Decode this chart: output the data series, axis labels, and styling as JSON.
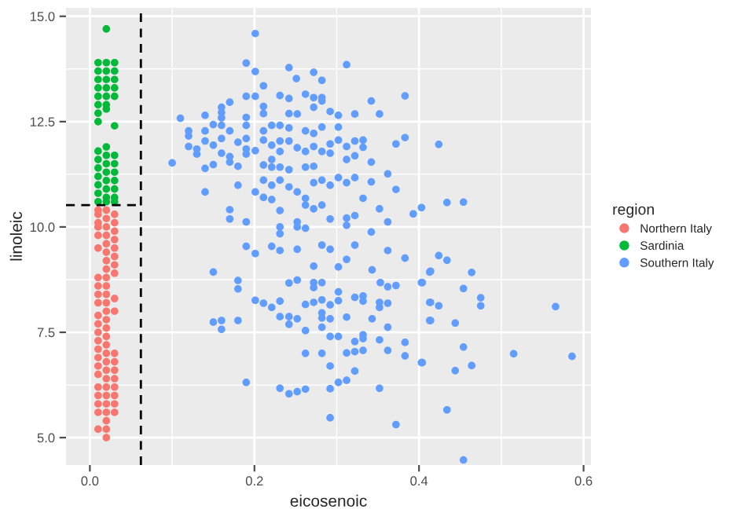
{
  "chart_data": {
    "type": "scatter",
    "xlabel": "eicosenoic",
    "ylabel": "linoleic",
    "legend_title": "region",
    "legend": "right",
    "grid": true,
    "marker": "circle",
    "xlim": [
      -0.029,
      0.609
    ],
    "ylim": [
      4.35,
      15.2
    ],
    "xticks": [
      {
        "value": 0,
        "label": "0.0"
      },
      0.2,
      0.4,
      0.6
    ],
    "yticks": [
      {
        "value": 5,
        "label": "5.0"
      },
      7.5,
      {
        "value": 10,
        "label": "10.0"
      },
      12.5,
      {
        "value": 15,
        "label": "15.0"
      }
    ],
    "ref_lines": [
      {
        "axis": "x",
        "value": 0.062,
        "line_style": "dashed",
        "color": "#000000"
      },
      {
        "axis": "y",
        "value": 10.52,
        "line_style": "dashed",
        "color": "#000000"
      }
    ],
    "series": [
      {
        "name": "Northern Italy",
        "color": "#f8766d",
        "x": [
          0.01,
          0.01,
          0.01,
          0.01,
          0.01,
          0.01,
          0.01,
          0.01,
          0.01,
          0.01,
          0.01,
          0.01,
          0.01,
          0.01,
          0.01,
          0.01,
          0.01,
          0.01,
          0.01,
          0.01,
          0.01,
          0.01,
          0.01,
          0.02,
          0.02,
          0.02,
          0.02,
          0.02,
          0.02,
          0.02,
          0.02,
          0.02,
          0.02,
          0.02,
          0.02,
          0.02,
          0.02,
          0.02,
          0.02,
          0.02,
          0.02,
          0.02,
          0.02,
          0.02,
          0.02,
          0.02,
          0.02,
          0.02,
          0.02,
          0.02,
          0.02,
          0.03,
          0.03,
          0.03,
          0.03,
          0.03,
          0.03,
          0.03,
          0.03,
          0.03,
          0.03,
          0.03,
          0.03,
          0.03,
          0.03,
          0.03,
          0.03,
          0.03,
          0.03
        ],
        "values": [
          10.4,
          10.3,
          10.1,
          10.0,
          9.8,
          9.5,
          8.8,
          8.6,
          8.4,
          8.2,
          7.9,
          7.7,
          7.5,
          7.3,
          7.1,
          6.9,
          6.7,
          6.5,
          6.2,
          6.0,
          5.8,
          5.6,
          5.2,
          10.4,
          10.2,
          10.0,
          9.8,
          9.6,
          9.4,
          9.2,
          9.0,
          8.8,
          8.6,
          8.4,
          8.2,
          8.0,
          7.8,
          7.6,
          7.4,
          7.2,
          7.0,
          6.8,
          6.6,
          6.4,
          6.2,
          6.0,
          5.8,
          5.6,
          5.4,
          5.2,
          5.0,
          10.3,
          10.1,
          9.9,
          9.7,
          9.5,
          9.3,
          9.1,
          8.9,
          8.3,
          8.0,
          7.0,
          6.8,
          6.6,
          6.4,
          6.2,
          6.0,
          5.8,
          5.6
        ]
      },
      {
        "name": "Sardinia",
        "color": "#00ba38",
        "x": [
          0.02,
          0.01,
          0.01,
          0.01,
          0.01,
          0.01,
          0.01,
          0.01,
          0.01,
          0.01,
          0.01,
          0.01,
          0.01,
          0.01,
          0.01,
          0.01,
          0.02,
          0.02,
          0.02,
          0.02,
          0.02,
          0.02,
          0.02,
          0.02,
          0.02,
          0.02,
          0.02,
          0.02,
          0.02,
          0.02,
          0.02,
          0.03,
          0.03,
          0.03,
          0.03,
          0.03,
          0.03,
          0.03,
          0.03,
          0.03,
          0.03,
          0.03,
          0.03,
          0.03
        ],
        "values": [
          14.7,
          13.9,
          13.7,
          13.5,
          13.3,
          13.1,
          12.9,
          12.7,
          12.5,
          11.8,
          11.6,
          11.4,
          11.2,
          11.0,
          10.8,
          10.6,
          13.9,
          13.7,
          13.5,
          13.3,
          13.1,
          12.9,
          12.8,
          11.9,
          11.7,
          11.5,
          11.3,
          11.1,
          10.9,
          10.7,
          10.6,
          13.9,
          13.7,
          13.5,
          13.3,
          13.1,
          12.4,
          11.7,
          11.5,
          11.3,
          11.1,
          10.9,
          10.7,
          10.6
        ]
      },
      {
        "name": "Southern Italy",
        "color": "#619cff",
        "x": [
          0.201,
          0.19,
          0.201,
          0.242,
          0.272,
          0.312,
          0.251,
          0.282,
          0.211,
          0.19,
          0.201,
          0.231,
          0.242,
          0.262,
          0.272,
          0.282,
          0.282,
          0.272,
          0.342,
          0.383,
          0.17,
          0.16,
          0.16,
          0.16,
          0.16,
          0.14,
          0.15,
          0.11,
          0.12,
          0.12,
          0.12,
          0.13,
          0.13,
          0.1,
          0.14,
          0.14,
          0.14,
          0.15,
          0.15,
          0.16,
          0.16,
          0.17,
          0.17,
          0.17,
          0.18,
          0.18,
          0.19,
          0.19,
          0.19,
          0.19,
          0.19,
          0.201,
          0.211,
          0.211,
          0.211,
          0.211,
          0.211,
          0.221,
          0.221,
          0.221,
          0.221,
          0.231,
          0.231,
          0.231,
          0.231,
          0.242,
          0.242,
          0.242,
          0.242,
          0.252,
          0.252,
          0.262,
          0.262,
          0.262,
          0.272,
          0.272,
          0.272,
          0.282,
          0.282,
          0.292,
          0.292,
          0.292,
          0.302,
          0.302,
          0.302,
          0.312,
          0.312,
          0.322,
          0.322,
          0.322,
          0.332,
          0.332,
          0.342,
          0.352,
          0.372,
          0.383,
          0.18,
          0.14,
          0.211,
          0.221,
          0.231,
          0.242,
          0.252,
          0.262,
          0.272,
          0.282,
          0.292,
          0.302,
          0.312,
          0.322,
          0.332,
          0.342,
          0.362,
          0.372,
          0.201,
          0.211,
          0.221,
          0.262,
          0.272,
          0.282,
          0.17,
          0.17,
          0.19,
          0.231,
          0.231,
          0.231,
          0.252,
          0.252,
          0.262,
          0.292,
          0.312,
          0.312,
          0.322,
          0.342,
          0.352,
          0.362,
          0.393,
          0.403,
          0.19,
          0.201,
          0.221,
          0.231,
          0.252,
          0.282,
          0.292,
          0.312,
          0.322,
          0.362,
          0.383,
          0.15,
          0.18,
          0.18,
          0.201,
          0.211,
          0.221,
          0.231,
          0.231,
          0.242,
          0.242,
          0.252,
          0.242,
          0.252,
          0.262,
          0.272,
          0.272,
          0.272,
          0.282,
          0.282,
          0.282,
          0.282,
          0.292,
          0.292,
          0.302,
          0.302,
          0.312,
          0.322,
          0.332,
          0.332,
          0.352,
          0.352,
          0.362,
          0.362,
          0.372,
          0.353,
          0.343,
          0.302,
          0.272,
          0.403,
          0.413,
          0.413,
          0.413,
          0.15,
          0.16,
          0.16,
          0.18,
          0.262,
          0.282,
          0.292,
          0.302,
          0.322,
          0.332,
          0.332,
          0.343,
          0.352,
          0.362,
          0.383,
          0.383,
          0.403,
          0.262,
          0.282,
          0.292,
          0.312,
          0.322,
          0.322,
          0.332,
          0.362,
          0.19,
          0.231,
          0.242,
          0.252,
          0.262,
          0.292,
          0.302,
          0.312,
          0.352,
          0.292,
          0.372,
          0.424,
          0.434,
          0.454,
          0.424,
          0.434,
          0.464,
          0.454,
          0.475,
          0.475,
          0.566,
          0.444,
          0.454,
          0.515,
          0.586,
          0.464,
          0.444,
          0.434,
          0.454,
          0.414,
          0.404,
          0.414,
          0.424,
          0.414,
          0.404
        ],
        "values": [
          14.59,
          13.89,
          13.69,
          13.78,
          13.67,
          13.85,
          13.52,
          13.48,
          13.35,
          13.1,
          13.1,
          13.12,
          13.05,
          13.15,
          13.07,
          13.07,
          12.99,
          12.84,
          12.99,
          13.11,
          12.96,
          12.84,
          12.72,
          12.59,
          12.41,
          12.65,
          12.43,
          12.58,
          12.28,
          12.16,
          11.91,
          11.85,
          11.73,
          11.52,
          12.28,
          12.04,
          11.39,
          11.48,
          11.94,
          12.1,
          11.75,
          12.28,
          11.67,
          11.54,
          11.44,
          12.01,
          12.6,
          12.41,
          12.1,
          11.85,
          11.73,
          11.81,
          12.86,
          12.69,
          12.28,
          12.06,
          11.47,
          12.41,
          11.94,
          11.6,
          11.42,
          12.41,
          12.04,
          11.79,
          11.42,
          12.69,
          12.35,
          12.04,
          11.36,
          12.68,
          11.88,
          12.28,
          11.79,
          11.42,
          12.22,
          11.91,
          11.44,
          12.37,
          11.79,
          12.74,
          11.97,
          11.75,
          12.65,
          12.37,
          12.06,
          11.91,
          11.6,
          12.68,
          12.04,
          11.69,
          12.06,
          11.89,
          11.54,
          12.68,
          11.97,
          12.12,
          10.99,
          10.83,
          11.11,
          10.99,
          11.11,
          10.95,
          10.83,
          10.68,
          11.05,
          11.11,
          10.99,
          11.17,
          11.05,
          11.17,
          10.68,
          11.07,
          11.26,
          10.89,
          10.83,
          10.7,
          10.65,
          10.52,
          10.43,
          10.52,
          10.41,
          10.19,
          10.12,
          10.39,
          10.0,
          9.84,
          10.12,
          10.0,
          9.97,
          10.19,
          10.21,
          10.04,
          10.27,
          9.88,
          10.43,
          10.12,
          10.31,
          10.46,
          9.54,
          9.37,
          9.54,
          9.44,
          9.47,
          9.57,
          9.47,
          9.23,
          9.57,
          9.44,
          9.26,
          8.93,
          8.73,
          8.53,
          8.26,
          8.19,
          8.09,
          8.24,
          7.87,
          7.87,
          7.69,
          7.82,
          8.67,
          8.74,
          8.16,
          8.21,
          8.68,
          8.56,
          8.68,
          8.27,
          7.96,
          7.84,
          8.15,
          7.82,
          8.46,
          8.25,
          7.86,
          8.33,
          8.36,
          8.24,
          8.21,
          8.09,
          8.19,
          8.58,
          8.61,
          8.68,
          8.98,
          9.05,
          9.07,
          8.68,
          8.93,
          8.21,
          7.78,
          7.74,
          7.78,
          7.57,
          7.78,
          7.54,
          7.62,
          7.4,
          7.4,
          7.28,
          7.44,
          7.35,
          7.82,
          7.32,
          7.62,
          7.26,
          6.94,
          6.78,
          7.0,
          7.0,
          6.7,
          7.01,
          7.04,
          6.58,
          7.07,
          7.07,
          6.31,
          6.17,
          6.04,
          6.09,
          6.15,
          6.16,
          6.31,
          6.36,
          6.17,
          5.47,
          5.31,
          11.96,
          10.58,
          10.59,
          9.32,
          9.21,
          8.92,
          8.54,
          8.32,
          8.13,
          8.11,
          7.72,
          7.15,
          6.99,
          6.93,
          6.71,
          6.59,
          5.66,
          4.47,
          8.95,
          8.68,
          8.21,
          8.13,
          7.78,
          6.78
        ]
      }
    ]
  }
}
